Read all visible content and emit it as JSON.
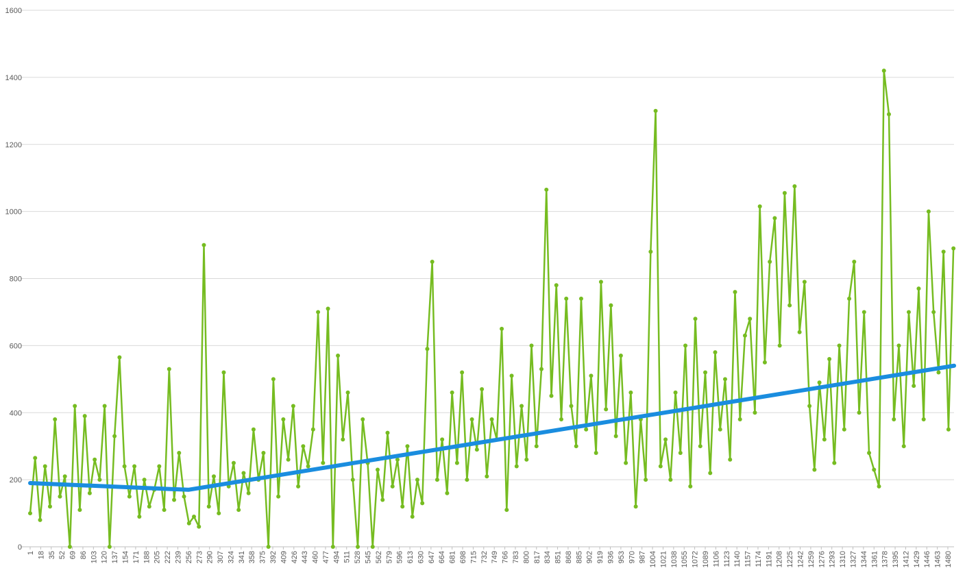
{
  "chart_data": {
    "type": "line",
    "xlim": [
      1,
      1490
    ],
    "ylim": [
      0,
      1600
    ],
    "yticks": [
      0,
      200,
      400,
      600,
      800,
      1000,
      1200,
      1400,
      1600
    ],
    "xticks": [
      1,
      18,
      35,
      52,
      69,
      86,
      103,
      120,
      137,
      154,
      171,
      188,
      205,
      222,
      239,
      256,
      273,
      290,
      307,
      324,
      341,
      358,
      375,
      392,
      409,
      426,
      443,
      460,
      477,
      494,
      511,
      528,
      545,
      562,
      579,
      596,
      613,
      630,
      647,
      664,
      681,
      698,
      715,
      732,
      749,
      766,
      783,
      800,
      817,
      834,
      851,
      868,
      885,
      902,
      919,
      936,
      953,
      970,
      987,
      1004,
      1021,
      1038,
      1055,
      1072,
      1089,
      1106,
      1123,
      1140,
      1157,
      1174,
      1191,
      1208,
      1225,
      1242,
      1259,
      1276,
      1293,
      1310,
      1327,
      1344,
      1361,
      1378,
      1395,
      1412,
      1429,
      1446,
      1463,
      1480
    ],
    "grid": true,
    "series": [
      {
        "color": "#76bc21",
        "markers": true,
        "x": [
          1,
          9,
          17,
          25,
          33,
          41,
          49,
          57,
          65,
          73,
          81,
          89,
          97,
          105,
          113,
          121,
          129,
          137,
          145,
          153,
          161,
          169,
          177,
          185,
          193,
          201,
          209,
          217,
          225,
          233,
          241,
          249,
          257,
          265,
          273,
          281,
          289,
          297,
          305,
          313,
          321,
          329,
          337,
          345,
          353,
          361,
          369,
          377,
          385,
          393,
          401,
          409,
          417,
          425,
          433,
          441,
          449,
          457,
          465,
          473,
          481,
          489,
          497,
          505,
          513,
          521,
          529,
          537,
          545,
          553,
          561,
          569,
          577,
          585,
          593,
          601,
          609,
          617,
          625,
          633,
          641,
          649,
          657,
          665,
          673,
          681,
          689,
          697,
          705,
          713,
          721,
          729,
          737,
          745,
          753,
          761,
          769,
          777,
          785,
          793,
          801,
          809,
          817,
          825,
          833,
          841,
          849,
          857,
          865,
          873,
          881,
          889,
          897,
          905,
          913,
          921,
          929,
          937,
          945,
          953,
          961,
          969,
          977,
          985,
          993,
          1001,
          1009,
          1017,
          1025,
          1033,
          1041,
          1049,
          1057,
          1065,
          1073,
          1081,
          1089,
          1097,
          1105,
          1113,
          1121,
          1129,
          1137,
          1145,
          1153,
          1161,
          1169,
          1177,
          1185,
          1193,
          1201,
          1209,
          1217,
          1225,
          1233,
          1241,
          1249,
          1257,
          1265,
          1273,
          1281,
          1289,
          1297,
          1305,
          1313,
          1321,
          1329,
          1337,
          1345,
          1353,
          1361,
          1369,
          1377,
          1385,
          1393,
          1401,
          1409,
          1417,
          1425,
          1433,
          1441,
          1449,
          1457,
          1465,
          1473,
          1481,
          1489
        ],
        "values": [
          100,
          265,
          80,
          240,
          120,
          380,
          150,
          210,
          0,
          420,
          110,
          390,
          160,
          260,
          200,
          420,
          0,
          330,
          565,
          240,
          150,
          240,
          90,
          200,
          120,
          170,
          240,
          110,
          530,
          140,
          280,
          150,
          70,
          90,
          60,
          900,
          120,
          210,
          100,
          520,
          180,
          250,
          110,
          220,
          160,
          350,
          200,
          280,
          0,
          500,
          150,
          380,
          260,
          420,
          180,
          300,
          240,
          350,
          700,
          250,
          710,
          0,
          570,
          320,
          460,
          200,
          0,
          380,
          250,
          0,
          230,
          140,
          340,
          180,
          260,
          120,
          300,
          90,
          200,
          130,
          590,
          850,
          200,
          320,
          160,
          460,
          250,
          520,
          200,
          380,
          290,
          470,
          210,
          380,
          320,
          650,
          110,
          510,
          240,
          420,
          260,
          600,
          300,
          530,
          1065,
          450,
          780,
          380,
          740,
          420,
          300,
          740,
          350,
          510,
          280,
          790,
          410,
          720,
          330,
          570,
          250,
          460,
          120,
          380,
          200,
          880,
          1300,
          240,
          320,
          200,
          460,
          280,
          600,
          180,
          680,
          300,
          520,
          220,
          580,
          350,
          500,
          260,
          760,
          380,
          630,
          680,
          400,
          1015,
          550,
          850,
          980,
          600,
          1055,
          720,
          1075,
          640,
          790,
          420,
          230,
          490,
          320,
          560,
          250,
          600,
          350,
          740,
          850,
          400,
          700,
          280,
          230,
          180,
          1420,
          1290,
          380,
          600,
          300,
          700,
          480,
          770,
          380,
          1000,
          700,
          520,
          880,
          350,
          890
        ]
      },
      {
        "color": "#1a8ddf",
        "markers": false,
        "x": [
          1,
          256,
          1490
        ],
        "values": [
          190,
          170,
          540
        ]
      }
    ]
  }
}
